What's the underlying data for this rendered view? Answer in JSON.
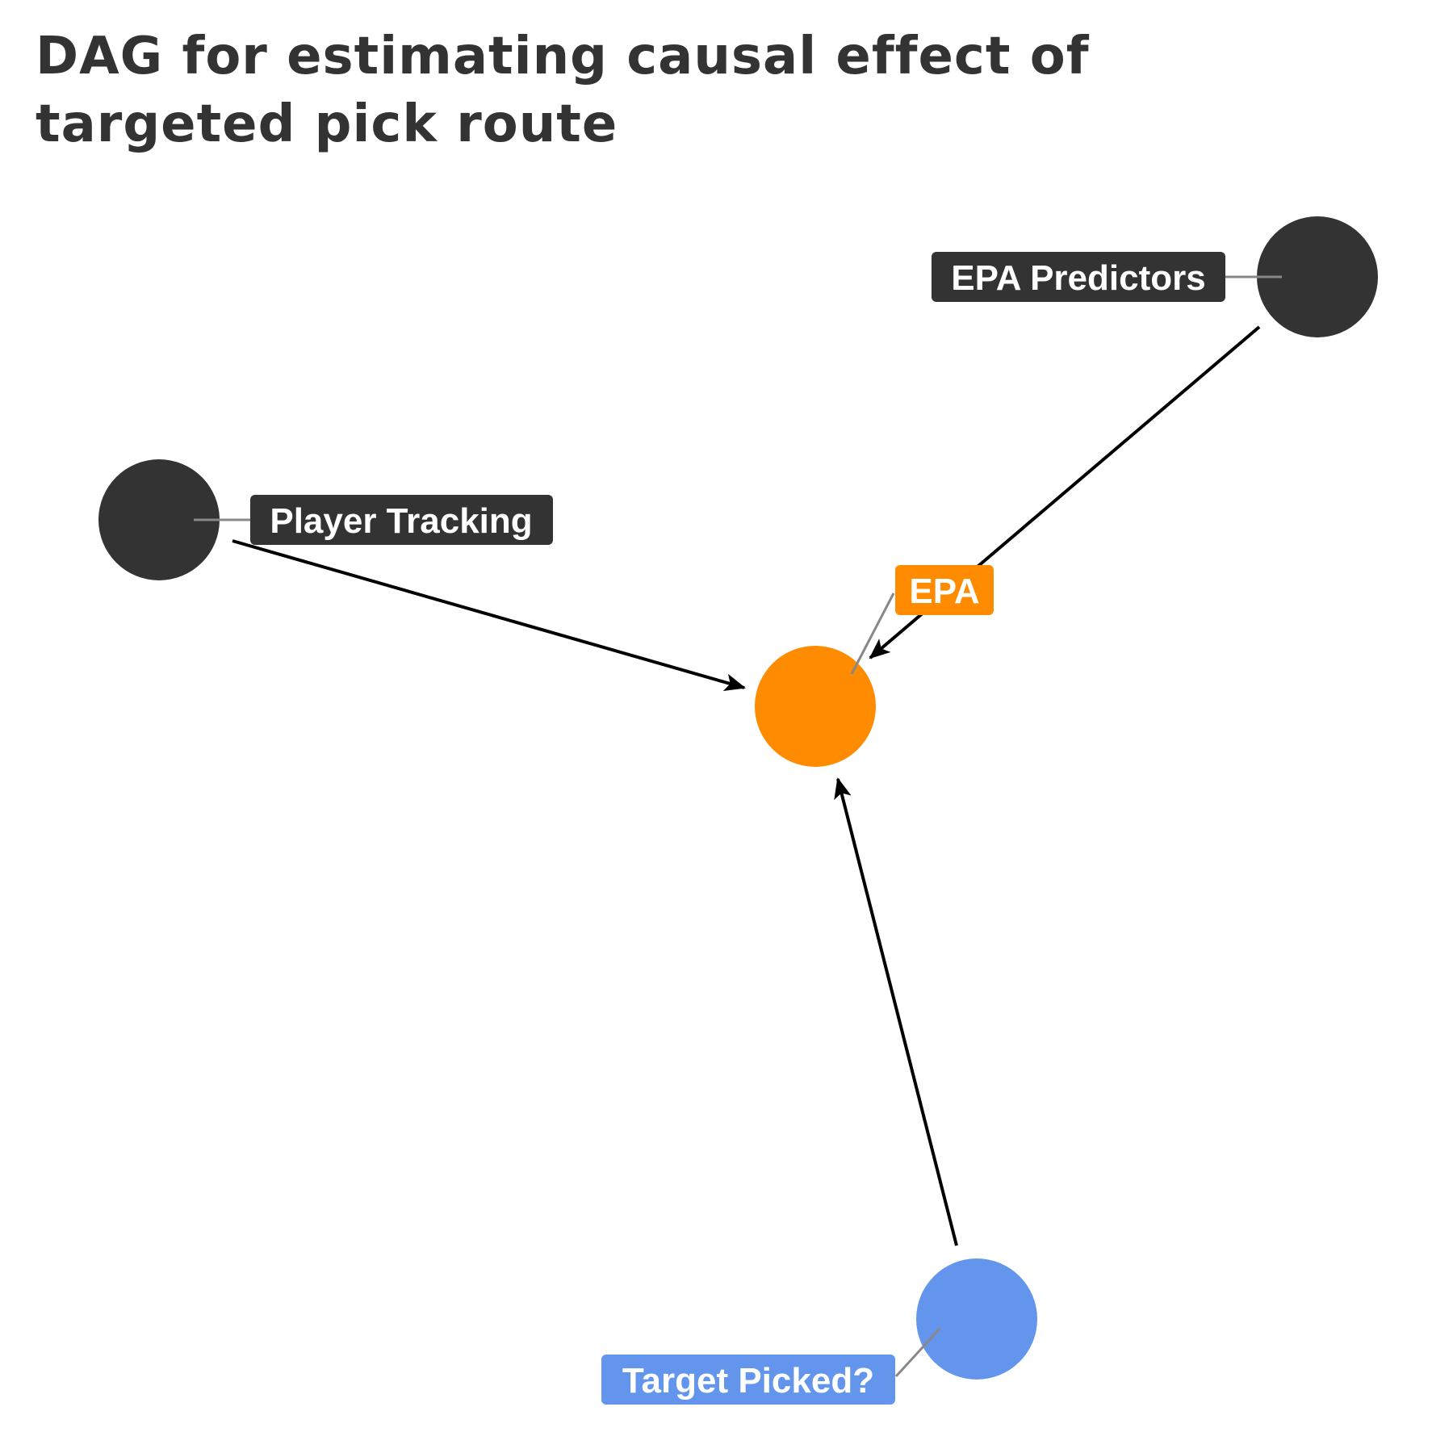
{
  "title": "DAG for estimating causal effect of targeted pick route",
  "colors": {
    "default_node": "#333333",
    "outcome_node": "#ff8c00",
    "exposure_node": "#6495ed",
    "edge": "#000000",
    "leader": "#888888",
    "label_text": "#ffffff"
  },
  "nodes": [
    {
      "id": "epa_predictors",
      "label": "EPA Predictors",
      "role": "default"
    },
    {
      "id": "player_tracking",
      "label": "Player Tracking",
      "role": "default"
    },
    {
      "id": "epa",
      "label": "EPA",
      "role": "outcome"
    },
    {
      "id": "target_picked",
      "label": "Target Picked?",
      "role": "exposure"
    }
  ],
  "edges": [
    {
      "from": "epa_predictors",
      "to": "epa"
    },
    {
      "from": "player_tracking",
      "to": "epa"
    },
    {
      "from": "target_picked",
      "to": "epa"
    }
  ]
}
